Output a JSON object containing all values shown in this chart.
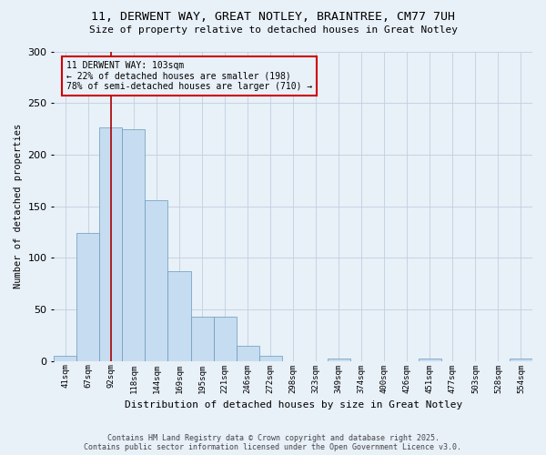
{
  "title1": "11, DERWENT WAY, GREAT NOTLEY, BRAINTREE, CM77 7UH",
  "title2": "Size of property relative to detached houses in Great Notley",
  "xlabel": "Distribution of detached houses by size in Great Notley",
  "ylabel": "Number of detached properties",
  "bar_values": [
    5,
    124,
    226,
    225,
    156,
    87,
    43,
    43,
    15,
    5,
    0,
    0,
    2,
    0,
    0,
    0,
    2,
    0,
    0,
    0,
    2
  ],
  "bar_labels": [
    "41sqm",
    "67sqm",
    "92sqm",
    "118sqm",
    "144sqm",
    "169sqm",
    "195sqm",
    "221sqm",
    "246sqm",
    "272sqm",
    "298sqm",
    "323sqm",
    "349sqm",
    "374sqm",
    "400sqm",
    "426sqm",
    "451sqm",
    "477sqm",
    "503sqm",
    "528sqm",
    "554sqm"
  ],
  "bar_color": "#c6dcf0",
  "bar_edge_color": "#6699bb",
  "vline_x": 2.0,
  "vline_color": "#aa0000",
  "annotation_text": "11 DERWENT WAY: 103sqm\n← 22% of detached houses are smaller (198)\n78% of semi-detached houses are larger (710) →",
  "annotation_box_color": "#cc0000",
  "annotation_fontsize": 7,
  "ylim": [
    0,
    300
  ],
  "yticks": [
    0,
    50,
    100,
    150,
    200,
    250,
    300
  ],
  "grid_color": "#c0cfe0",
  "bg_color": "#e8f0f8",
  "footer1": "Contains HM Land Registry data © Crown copyright and database right 2025.",
  "footer2": "Contains public sector information licensed under the Open Government Licence v3.0."
}
